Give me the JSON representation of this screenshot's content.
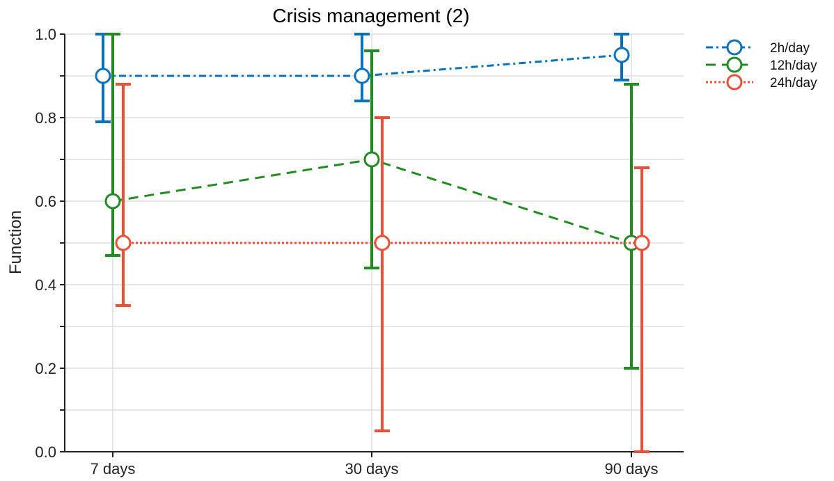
{
  "chart_data": {
    "type": "line",
    "title": "Crisis management (2)",
    "xlabel": "",
    "ylabel": "Function",
    "categories": [
      "7 days",
      "30 days",
      "90 days"
    ],
    "ylim": [
      0,
      1.0
    ],
    "yticks": [
      0.0,
      0.2,
      0.4,
      0.6,
      0.8,
      1.0
    ],
    "ytick_labels": [
      "0.0",
      "0.2",
      "0.4",
      "0.6",
      "0.8",
      "1.0"
    ],
    "grid": true,
    "legend_position": "top-right-outside",
    "series": [
      {
        "name": "2h/day",
        "color": "#0a72ba",
        "linestyle": "dashdot",
        "values": [
          0.9,
          0.9,
          0.95
        ],
        "err_low": [
          0.79,
          0.84,
          0.89
        ],
        "err_high": [
          1.0,
          1.0,
          1.0
        ]
      },
      {
        "name": "12h/day",
        "color": "#228b22",
        "linestyle": "dashed",
        "values": [
          0.6,
          0.7,
          0.5
        ],
        "err_low": [
          0.47,
          0.44,
          0.2
        ],
        "err_high": [
          1.0,
          0.96,
          0.88
        ]
      },
      {
        "name": "24h/day",
        "color": "#e8503a",
        "linestyle": "dotted",
        "values": [
          0.5,
          0.5,
          0.5
        ],
        "err_low": [
          0.35,
          0.05,
          0.0
        ],
        "err_high": [
          0.88,
          0.8,
          0.68
        ]
      }
    ]
  }
}
